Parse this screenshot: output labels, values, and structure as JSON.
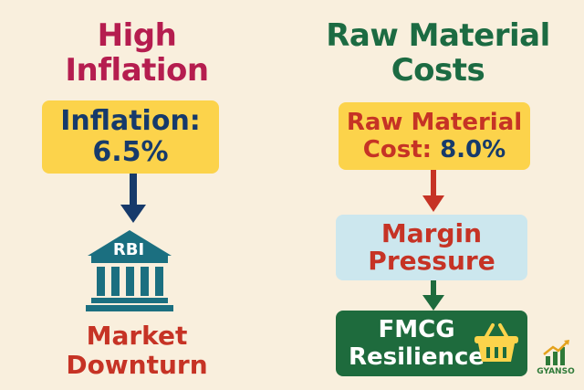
{
  "left": {
    "title_line1": "High",
    "title_line2": "Inflation",
    "inflation_label": "Inflation:",
    "inflation_value": "6.5%",
    "bank_label": "RBI",
    "outcome_line1": "Market",
    "outcome_line2": "Downturn"
  },
  "right": {
    "title_line1": "Raw Material",
    "title_line2": "Costs",
    "cost_line1": "Raw Material",
    "cost_line2_label": "Cost:",
    "cost_value": "8.0%",
    "pressure_line1": "Margin",
    "pressure_line2": "Pressure",
    "resilience_line1": "FMCG",
    "resilience_line2": "Resilience"
  },
  "brand": "GYANSO",
  "colors": {
    "background": "#f9efdd",
    "left_title": "#b51d4f",
    "right_title": "#1c6b42",
    "yellow_box": "#fcd34b",
    "navy_text": "#163a6b",
    "red_text": "#c63325",
    "light_blue_box": "#cce7ee",
    "green_box": "#1e6b3d",
    "bank_teal": "#1b6f80"
  },
  "icons": [
    "down-arrow-icon",
    "bank-building-icon",
    "shopping-basket-icon",
    "growth-chart-icon"
  ]
}
